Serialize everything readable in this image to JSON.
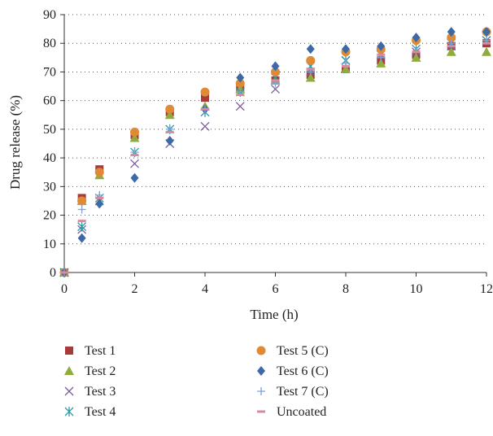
{
  "chart_data": {
    "type": "scatter",
    "xlabel": "Time (h)",
    "ylabel": "Drug release (%)",
    "xlim": [
      0,
      12
    ],
    "ylim": [
      0,
      90
    ],
    "xticks": [
      0,
      2,
      4,
      6,
      8,
      10,
      12
    ],
    "yticks": [
      0,
      10,
      20,
      30,
      40,
      50,
      60,
      70,
      80,
      90
    ],
    "grid": "horizontal dotted",
    "legend_position": "bottom",
    "series": [
      {
        "name": "Test 1",
        "marker": "square",
        "color": "#a83a3a",
        "x": [
          0,
          0.5,
          1,
          2,
          3,
          4,
          5,
          6,
          7,
          8,
          9,
          10,
          11,
          12
        ],
        "y": [
          0,
          26,
          36,
          48,
          56,
          61,
          64,
          67,
          69,
          71,
          74,
          76,
          79,
          80
        ]
      },
      {
        "name": "Test 2",
        "marker": "triangle",
        "color": "#8fad3c",
        "x": [
          0,
          0.5,
          1,
          2,
          3,
          4,
          5,
          6,
          7,
          8,
          9,
          10,
          11,
          12
        ],
        "y": [
          0,
          25,
          34,
          47,
          55,
          58,
          64,
          67,
          68,
          71,
          73,
          75,
          77,
          77
        ]
      },
      {
        "name": "Test 3",
        "marker": "x",
        "color": "#7c5c9e",
        "x": [
          0,
          0.5,
          1,
          2,
          3,
          4,
          5,
          6,
          7,
          8,
          9,
          10,
          11,
          12
        ],
        "y": [
          0,
          15,
          25,
          38,
          45,
          51,
          58,
          64,
          70,
          74,
          76,
          77,
          79,
          81
        ]
      },
      {
        "name": "Test 4",
        "marker": "asterisk",
        "color": "#2e9aa8",
        "x": [
          0,
          0.5,
          1,
          2,
          3,
          4,
          5,
          6,
          7,
          8,
          9,
          10,
          11,
          12
        ],
        "y": [
          0,
          16,
          26,
          42,
          50,
          56,
          63,
          68,
          72,
          74,
          76,
          78,
          80,
          81
        ]
      },
      {
        "name": "Test 5 (C)",
        "marker": "circle",
        "color": "#e08a35",
        "x": [
          0,
          0.5,
          1,
          2,
          3,
          4,
          5,
          6,
          7,
          8,
          9,
          10,
          11,
          12
        ],
        "y": [
          0,
          25,
          35,
          49,
          57,
          63,
          66,
          70,
          74,
          77,
          78,
          81,
          82,
          84
        ]
      },
      {
        "name": "Test 6 (C)",
        "marker": "diamond",
        "color": "#3d6aa6",
        "x": [
          0,
          0.5,
          1,
          2,
          3,
          4,
          5,
          6,
          7,
          8,
          9,
          10,
          11,
          12
        ],
        "y": [
          0,
          12,
          24,
          33,
          46,
          57,
          68,
          72,
          78,
          78,
          79,
          82,
          84,
          84
        ]
      },
      {
        "name": "Test 7 (C)",
        "marker": "plus",
        "color": "#7fa3d4",
        "x": [
          0,
          0.5,
          1,
          2,
          3,
          4,
          5,
          6,
          7,
          8,
          9,
          10,
          11,
          12
        ],
        "y": [
          0,
          22,
          27,
          42,
          50,
          57,
          63,
          66,
          70,
          73,
          75,
          77,
          80,
          81
        ]
      },
      {
        "name": "Uncoated",
        "marker": "dash",
        "color": "#d98a9a",
        "x": [
          0,
          0.5,
          1,
          2,
          3,
          4,
          5,
          6,
          7,
          8,
          9,
          10,
          11,
          12
        ],
        "y": [
          0,
          18,
          26,
          41,
          49,
          57,
          62,
          67,
          71,
          72,
          76,
          77,
          79,
          80
        ]
      }
    ]
  }
}
